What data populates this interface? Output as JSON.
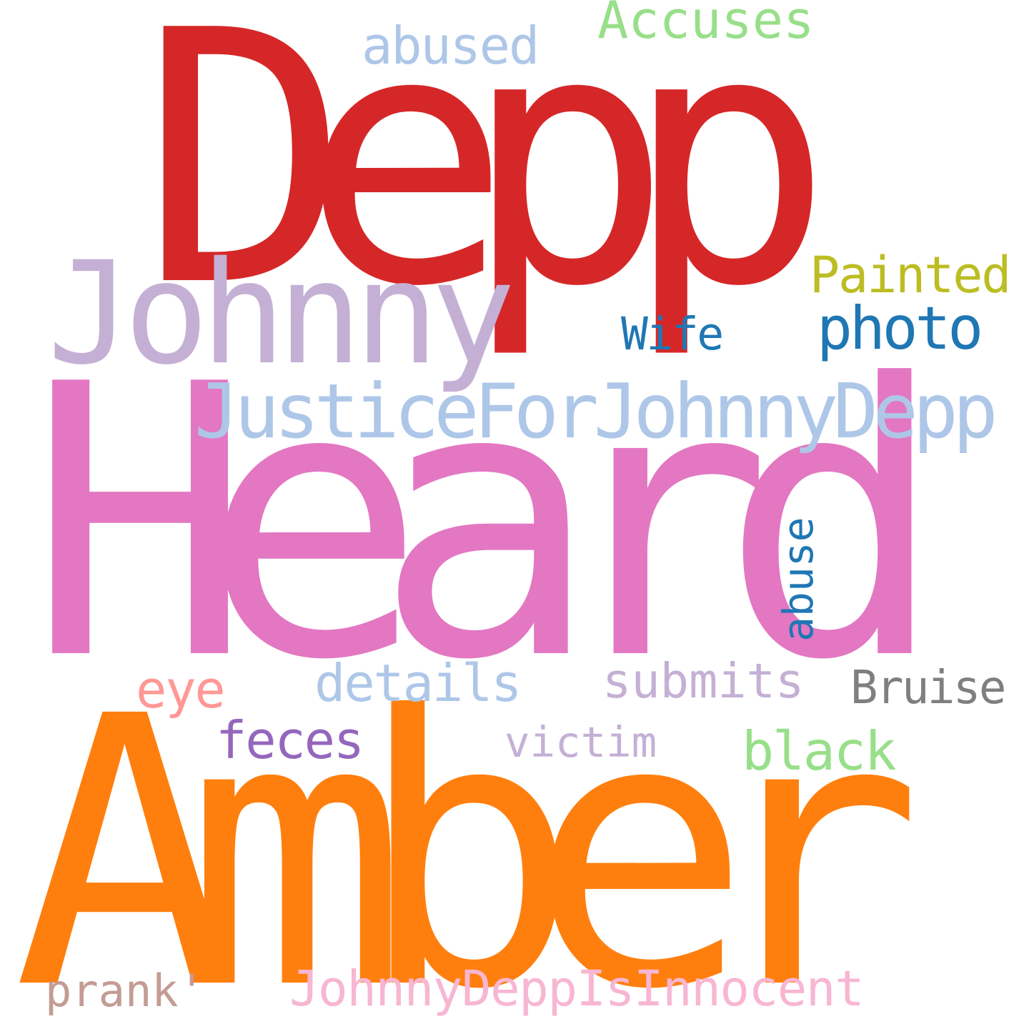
{
  "words": [
    {
      "text": "Depp",
      "color": "#d62728"
    },
    {
      "text": "Heard",
      "color": "#e377c2"
    },
    {
      "text": "Amber",
      "color": "#ff7f0e"
    },
    {
      "text": "Johnny",
      "color": "#c5b0d5"
    },
    {
      "text": "JusticeForJohnnyDepp",
      "color": "#aec7e8"
    },
    {
      "text": "Accuses",
      "color": "#98df8a"
    },
    {
      "text": "abused",
      "color": "#aec7e8"
    },
    {
      "text": "Painted",
      "color": "#bcbd22"
    },
    {
      "text": "photo",
      "color": "#1f77b4"
    },
    {
      "text": "Wife",
      "color": "#1f77b4"
    },
    {
      "text": "abuse",
      "color": "#1f77b4"
    },
    {
      "text": "eye",
      "color": "#ff9896"
    },
    {
      "text": "details",
      "color": "#aec7e8"
    },
    {
      "text": "submits",
      "color": "#c5b0d5"
    },
    {
      "text": "Bruise",
      "color": "#7f7f7f"
    },
    {
      "text": "feces",
      "color": "#9467bd"
    },
    {
      "text": "victim",
      "color": "#c5b0d5"
    },
    {
      "text": "black",
      "color": "#98df8a"
    },
    {
      "text": "prank'",
      "color": "#c49c94"
    },
    {
      "text": "JohnnyDeppIsInnocent",
      "color": "#f7b6d2"
    }
  ]
}
